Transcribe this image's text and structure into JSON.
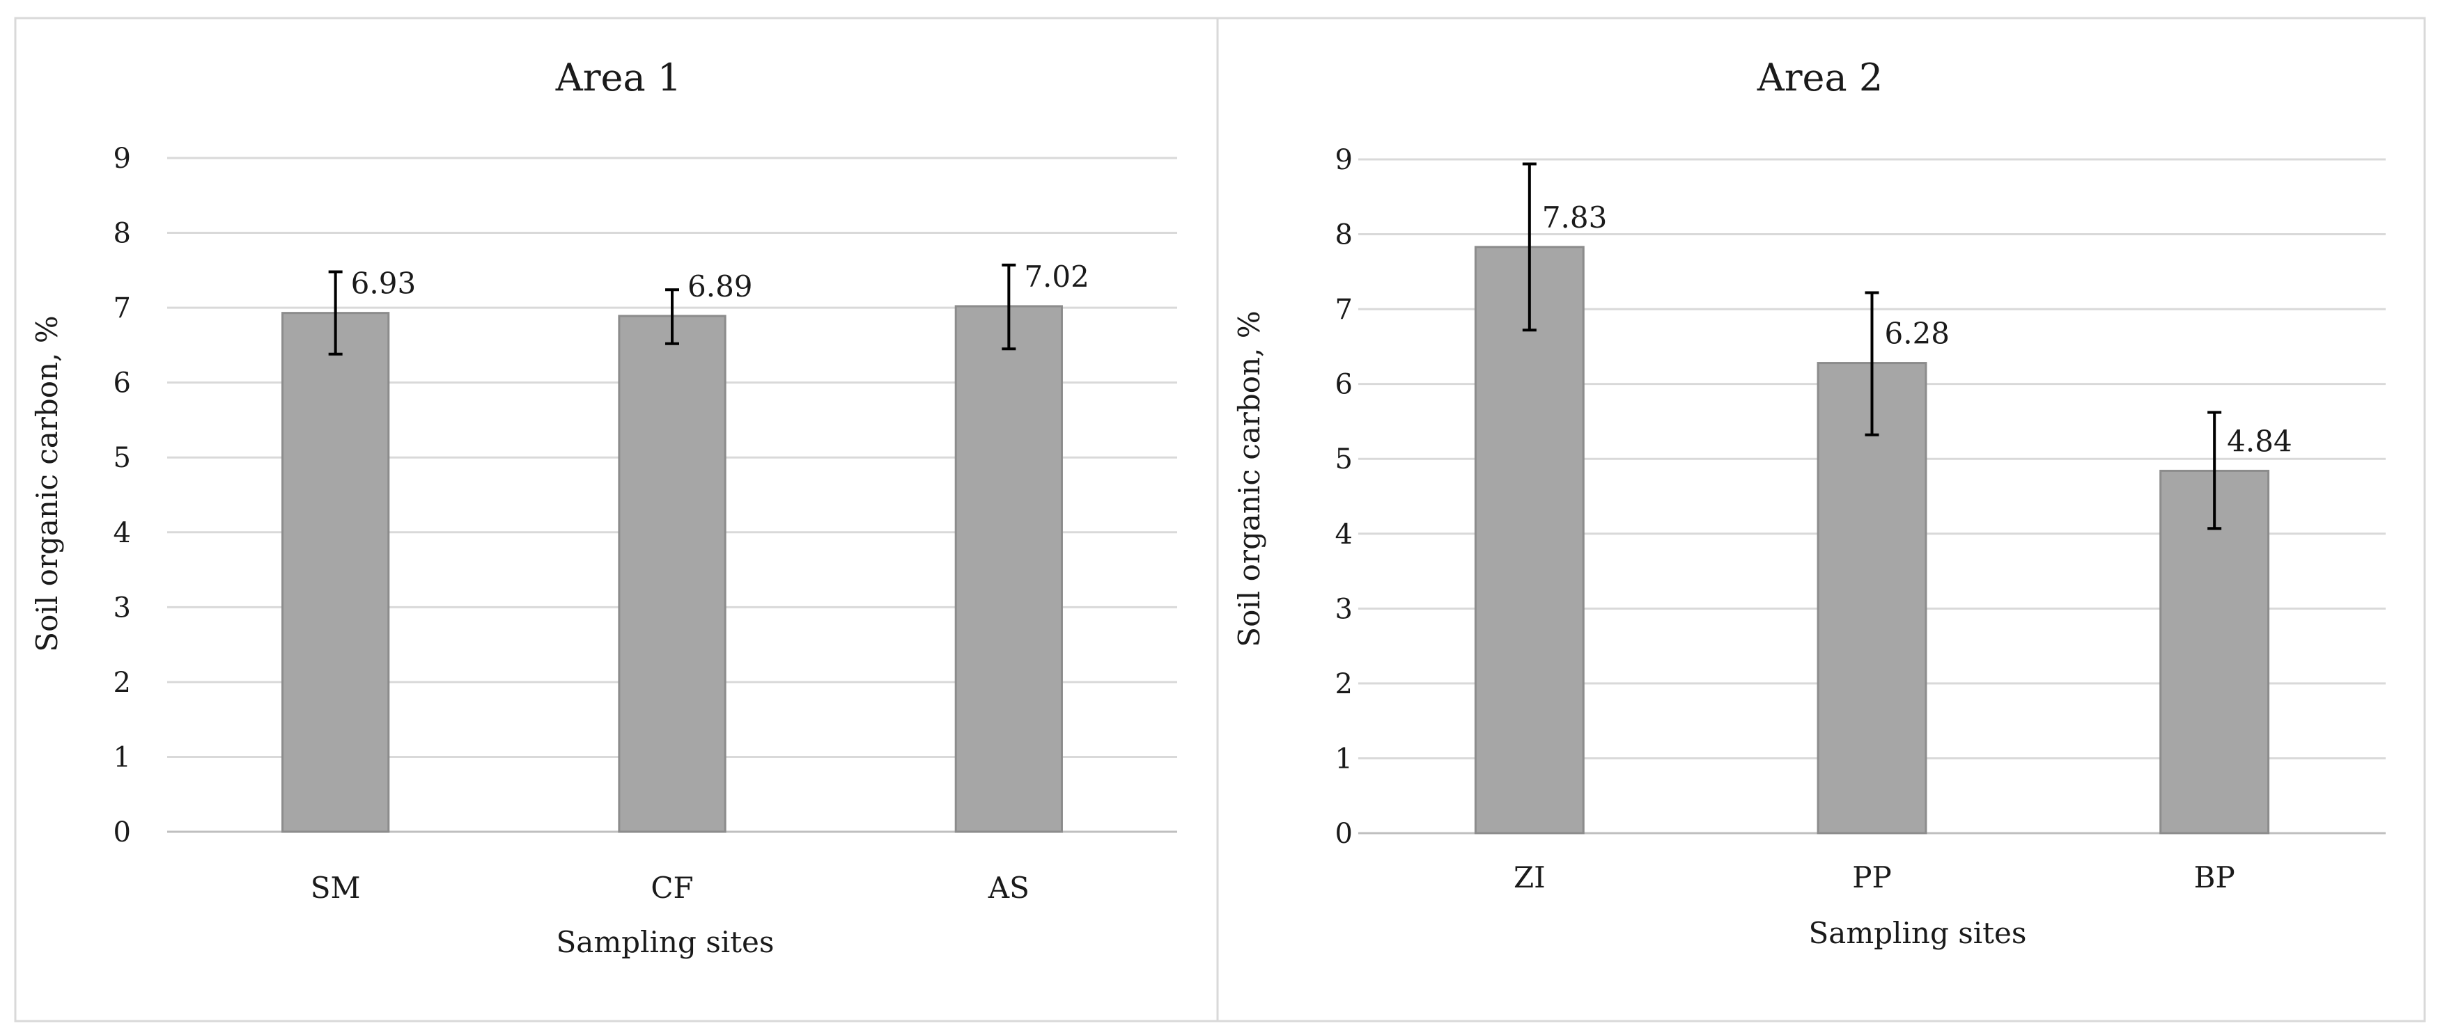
{
  "chart_data": [
    {
      "type": "bar",
      "title": "Area 1",
      "xlabel": "Sampling sites",
      "ylabel": "Soil organic carbon, %",
      "categories": [
        "SM",
        "CF",
        "AS"
      ],
      "values": [
        6.93,
        6.89,
        7.02
      ],
      "error_low": [
        6.38,
        6.52,
        6.45
      ],
      "error_high": [
        7.48,
        7.24,
        7.57
      ],
      "data_labels": [
        "6.93",
        "6.89",
        "7.02"
      ],
      "ylim": [
        0,
        9
      ],
      "yticks": [
        "0",
        "1",
        "2",
        "3",
        "4",
        "5",
        "6",
        "7",
        "8",
        "9"
      ],
      "grid": true,
      "bar_color": "#a6a6a6"
    },
    {
      "type": "bar",
      "title": "Area 2",
      "xlabel": "Sampling sites",
      "ylabel": "Soil organic carbon, %",
      "categories": [
        "ZI",
        "PP",
        "BP"
      ],
      "values": [
        7.83,
        6.28,
        4.84
      ],
      "error_low": [
        6.72,
        5.32,
        4.07
      ],
      "error_high": [
        8.94,
        7.22,
        5.62
      ],
      "data_labels": [
        "7.83",
        "6.28",
        "4.84"
      ],
      "ylim": [
        0,
        9
      ],
      "yticks": [
        "0",
        "1",
        "2",
        "3",
        "4",
        "5",
        "6",
        "7",
        "8",
        "9"
      ],
      "grid": true,
      "bar_color": "#a6a6a6"
    }
  ]
}
